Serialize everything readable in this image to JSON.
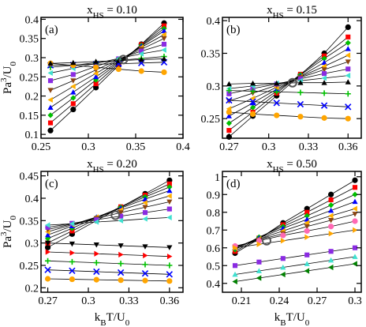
{
  "chart_data": [
    {
      "type": "line",
      "title": [
        "x",
        "HS",
        " = 0.10"
      ],
      "label": "(a)",
      "ylabel": [
        "Pa",
        "3",
        "/U",
        "0"
      ],
      "xlim": [
        0.25,
        0.4
      ],
      "xticks": [
        0.25,
        0.3,
        0.35,
        0.4
      ],
      "ylim": [
        0.09,
        0.405
      ],
      "yticks": [
        0.1,
        0.15,
        0.2,
        0.25,
        0.3,
        0.35,
        0.4
      ],
      "x": [
        0.26,
        0.284,
        0.308,
        0.332,
        0.356,
        0.38
      ],
      "crossing": {
        "x": 0.337,
        "y": 0.295
      },
      "series": [
        {
          "color": "#000000",
          "marker": "circle",
          "values": [
            0.11,
            0.165,
            0.222,
            0.28,
            0.335,
            0.39
          ]
        },
        {
          "color": "#ff0000",
          "marker": "square",
          "values": [
            0.13,
            0.18,
            0.232,
            0.284,
            0.334,
            0.383
          ]
        },
        {
          "color": "#00c000",
          "marker": "diamond",
          "values": [
            0.15,
            0.195,
            0.242,
            0.287,
            0.332,
            0.376
          ]
        },
        {
          "color": "#0000ff",
          "marker": "triangle-up",
          "values": [
            0.17,
            0.21,
            0.25,
            0.29,
            0.33,
            0.37
          ]
        },
        {
          "color": "#ffb000",
          "marker": "triangle-left",
          "values": [
            0.19,
            0.225,
            0.259,
            0.293,
            0.327,
            0.36
          ]
        },
        {
          "color": "#8b4513",
          "marker": "triangle-down",
          "values": [
            0.215,
            0.24,
            0.268,
            0.295,
            0.322,
            0.35
          ]
        },
        {
          "color": "#8a2be2",
          "marker": "square",
          "values": [
            0.24,
            0.256,
            0.277,
            0.297,
            0.317,
            0.335
          ]
        },
        {
          "color": "#40e0d0",
          "marker": "triangle-left",
          "values": [
            0.26,
            0.272,
            0.285,
            0.298,
            0.31,
            0.32
          ]
        },
        {
          "color": "#00c000",
          "marker": "plus",
          "values": [
            0.275,
            0.28,
            0.287,
            0.293,
            0.298,
            0.303
          ]
        },
        {
          "color": "#0000ff",
          "marker": "x",
          "values": [
            0.28,
            0.281,
            0.283,
            0.284,
            0.286,
            0.288
          ]
        },
        {
          "color": "#ffa500",
          "marker": "circle",
          "values": [
            0.285,
            0.28,
            0.275,
            0.27,
            0.265,
            0.262
          ]
        },
        {
          "color": "#000000",
          "marker": "triangle-up",
          "values": [
            0.285,
            0.287,
            0.29,
            0.292,
            0.295,
            0.297
          ]
        }
      ]
    },
    {
      "type": "line",
      "title": [
        "x",
        "HS",
        " = 0.15"
      ],
      "label": "(b)",
      "xlim": [
        0.265,
        0.37
      ],
      "xticks": [
        0.27,
        0.3,
        0.33,
        0.36
      ],
      "ylim": [
        0.22,
        0.405
      ],
      "yticks": [
        0.25,
        0.3,
        0.35,
        0.4
      ],
      "x": [
        0.27,
        0.288,
        0.306,
        0.324,
        0.342,
        0.36
      ],
      "crossing": {
        "x": 0.318,
        "y": 0.305
      },
      "series": [
        {
          "color": "#000000",
          "marker": "circle",
          "values": [
            0.222,
            0.254,
            0.285,
            0.317,
            0.35,
            0.39
          ]
        },
        {
          "color": "#ff0000",
          "marker": "square",
          "values": [
            0.232,
            0.26,
            0.289,
            0.318,
            0.346,
            0.375
          ]
        },
        {
          "color": "#00c000",
          "marker": "diamond",
          "values": [
            0.243,
            0.267,
            0.292,
            0.317,
            0.342,
            0.366
          ]
        },
        {
          "color": "#0000ff",
          "marker": "triangle-up",
          "values": [
            0.254,
            0.274,
            0.295,
            0.315,
            0.336,
            0.357
          ]
        },
        {
          "color": "#ffb000",
          "marker": "triangle-left",
          "values": [
            0.265,
            0.281,
            0.298,
            0.314,
            0.33,
            0.347
          ]
        },
        {
          "color": "#8b4513",
          "marker": "triangle-down",
          "values": [
            0.277,
            0.289,
            0.301,
            0.313,
            0.325,
            0.337
          ]
        },
        {
          "color": "#8a2be2",
          "marker": "square",
          "values": [
            0.288,
            0.296,
            0.303,
            0.311,
            0.319,
            0.326
          ]
        },
        {
          "color": "#40e0d0",
          "marker": "triangle-left",
          "values": [
            0.296,
            0.3,
            0.304,
            0.308,
            0.312,
            0.316
          ]
        },
        {
          "color": "#00c000",
          "marker": "plus",
          "values": [
            0.293,
            0.292,
            0.291,
            0.29,
            0.289,
            0.288
          ]
        },
        {
          "color": "#0000ff",
          "marker": "x",
          "values": [
            0.278,
            0.276,
            0.274,
            0.272,
            0.27,
            0.268
          ]
        },
        {
          "color": "#ffa500",
          "marker": "circle",
          "values": [
            0.26,
            0.257,
            0.255,
            0.253,
            0.251,
            0.25
          ]
        },
        {
          "color": "#000000",
          "marker": "triangle-up",
          "values": [
            0.303,
            0.304,
            0.304,
            0.305,
            0.305,
            0.306
          ]
        }
      ]
    },
    {
      "type": "line",
      "title": [
        "x",
        "HS",
        " = 0.20"
      ],
      "label": "(c)",
      "ylabel": [
        "Pa",
        "3",
        "/U",
        "0"
      ],
      "xlabel": [
        "k",
        "B",
        "T/U",
        "0"
      ],
      "xlim": [
        0.265,
        0.37
      ],
      "xticks": [
        0.27,
        0.3,
        0.33,
        0.36
      ],
      "ylim": [
        0.19,
        0.46
      ],
      "yticks": [
        0.2,
        0.25,
        0.3,
        0.35,
        0.4,
        0.45
      ],
      "x": [
        0.27,
        0.288,
        0.306,
        0.324,
        0.342,
        0.36
      ],
      "crossing": {
        "x": 0.32,
        "y": 0.362
      },
      "series": [
        {
          "color": "#000000",
          "marker": "circle",
          "values": [
            0.29,
            0.32,
            0.35,
            0.38,
            0.41,
            0.44
          ]
        },
        {
          "color": "#ff0000",
          "marker": "square",
          "values": [
            0.3,
            0.327,
            0.354,
            0.381,
            0.407,
            0.432
          ]
        },
        {
          "color": "#00c000",
          "marker": "diamond",
          "values": [
            0.31,
            0.333,
            0.357,
            0.38,
            0.403,
            0.425
          ]
        },
        {
          "color": "#0000ff",
          "marker": "triangle-up",
          "values": [
            0.318,
            0.338,
            0.358,
            0.378,
            0.398,
            0.417
          ]
        },
        {
          "color": "#ffb000",
          "marker": "triangle-left",
          "values": [
            0.325,
            0.341,
            0.358,
            0.374,
            0.39,
            0.405
          ]
        },
        {
          "color": "#8b4513",
          "marker": "triangle-down",
          "values": [
            0.33,
            0.343,
            0.355,
            0.368,
            0.38,
            0.392
          ]
        },
        {
          "color": "#8a2be2",
          "marker": "square",
          "values": [
            0.335,
            0.344,
            0.352,
            0.36,
            0.368,
            0.376
          ]
        },
        {
          "color": "#40e0d0",
          "marker": "triangle-left",
          "values": [
            0.34,
            0.343,
            0.347,
            0.35,
            0.354,
            0.357
          ]
        },
        {
          "color": "#000000",
          "marker": "triangle-down",
          "values": [
            0.3,
            0.298,
            0.296,
            0.294,
            0.292,
            0.29
          ]
        },
        {
          "color": "#ff0000",
          "marker": "triangle-right",
          "values": [
            0.28,
            0.278,
            0.276,
            0.274,
            0.272,
            0.27
          ]
        },
        {
          "color": "#00c000",
          "marker": "plus",
          "values": [
            0.26,
            0.258,
            0.256,
            0.254,
            0.252,
            0.25
          ]
        },
        {
          "color": "#0000ff",
          "marker": "x",
          "values": [
            0.24,
            0.238,
            0.236,
            0.234,
            0.232,
            0.23
          ]
        },
        {
          "color": "#ffa500",
          "marker": "circle",
          "values": [
            0.22,
            0.219,
            0.218,
            0.217,
            0.216,
            0.215
          ]
        }
      ]
    },
    {
      "type": "line",
      "title": [
        "x",
        "HS",
        " = 0.50"
      ],
      "label": "(d)",
      "xlabel": [
        "k",
        "B",
        "T/U",
        "0"
      ],
      "xlim": [
        0.195,
        0.305
      ],
      "xticks": [
        0.21,
        0.24,
        0.27,
        0.3
      ],
      "ylim": [
        0.35,
        1.03
      ],
      "yticks": [
        0.4,
        0.5,
        0.6,
        0.7,
        0.8,
        0.9,
        1
      ],
      "x": [
        0.205,
        0.224,
        0.243,
        0.262,
        0.281,
        0.3
      ],
      "crossing": {
        "x": 0.23,
        "y": 0.64
      },
      "series": [
        {
          "color": "#000000",
          "marker": "circle",
          "values": [
            0.57,
            0.65,
            0.74,
            0.82,
            0.9,
            0.98
          ]
        },
        {
          "color": "#ff0000",
          "marker": "square",
          "values": [
            0.58,
            0.655,
            0.73,
            0.8,
            0.87,
            0.94
          ]
        },
        {
          "color": "#00c000",
          "marker": "diamond",
          "values": [
            0.59,
            0.66,
            0.72,
            0.78,
            0.84,
            0.9
          ]
        },
        {
          "color": "#0000ff",
          "marker": "triangle-up",
          "values": [
            0.6,
            0.655,
            0.71,
            0.76,
            0.81,
            0.86
          ]
        },
        {
          "color": "#ffb000",
          "marker": "triangle-left",
          "values": [
            0.6,
            0.65,
            0.695,
            0.74,
            0.78,
            0.82
          ]
        },
        {
          "color": "#8b4513",
          "marker": "triangle-down",
          "values": [
            0.605,
            0.645,
            0.68,
            0.72,
            0.755,
            0.79
          ]
        },
        {
          "color": "#ff69b4",
          "marker": "circle",
          "values": [
            0.61,
            0.64,
            0.67,
            0.695,
            0.72,
            0.75
          ]
        },
        {
          "color": "#ffa500",
          "marker": "triangle-right",
          "values": [
            0.6,
            0.62,
            0.64,
            0.66,
            0.68,
            0.7
          ]
        },
        {
          "color": "#8a2be2",
          "marker": "square",
          "values": [
            0.5,
            0.52,
            0.54,
            0.56,
            0.58,
            0.6
          ]
        },
        {
          "color": "#40e0d0",
          "marker": "triangle-up",
          "values": [
            0.45,
            0.47,
            0.49,
            0.51,
            0.53,
            0.55
          ]
        },
        {
          "color": "#008000",
          "marker": "triangle-left",
          "values": [
            0.41,
            0.43,
            0.45,
            0.47,
            0.49,
            0.51
          ]
        }
      ]
    }
  ]
}
